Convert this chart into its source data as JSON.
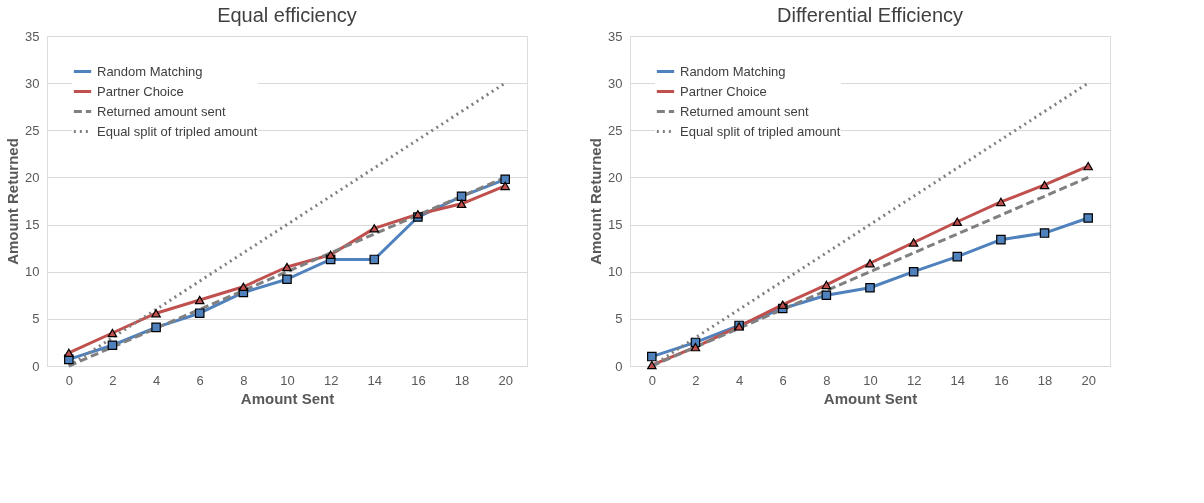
{
  "chart_data": [
    {
      "type": "line",
      "title": "Equal efficiency",
      "xlabel": "Amount Sent",
      "ylabel": "Amount Returned",
      "categories": [
        "0",
        "2",
        "4",
        "6",
        "8",
        "10",
        "12",
        "14",
        "16",
        "18",
        "20"
      ],
      "ylim": [
        0,
        35
      ],
      "yticks": [
        0,
        5,
        10,
        15,
        20,
        25,
        30,
        35
      ],
      "grid": "y",
      "legend": "top left",
      "series": [
        {
          "name": "Random Matching",
          "color": "#4f81bd",
          "marker": "square",
          "line_style": "solid",
          "values": [
            0.7,
            2.2,
            4.1,
            5.6,
            7.8,
            9.2,
            11.3,
            11.3,
            15.8,
            18.0,
            19.8
          ]
        },
        {
          "name": "Partner Choice",
          "color": "#c0504d",
          "marker": "triangle",
          "line_style": "solid",
          "values": [
            1.4,
            3.5,
            5.6,
            7.0,
            8.4,
            10.5,
            11.8,
            14.6,
            16.1,
            17.2,
            19.1
          ]
        },
        {
          "name": "Returned amount sent",
          "color": "#808080",
          "marker": "none",
          "line_style": "dashed",
          "values": [
            0,
            2,
            4,
            6,
            8,
            10,
            12,
            14,
            16,
            18,
            20
          ]
        },
        {
          "name": "Equal split of tripled amount",
          "color": "#808080",
          "marker": "none",
          "line_style": "dotted",
          "values": [
            0,
            3,
            6,
            9,
            12,
            15,
            18,
            21,
            24,
            27,
            30
          ]
        }
      ]
    },
    {
      "type": "line",
      "title": "Differential Efficiency",
      "xlabel": "Amount Sent",
      "ylabel": "Amount Returned",
      "categories": [
        "0",
        "2",
        "4",
        "6",
        "8",
        "10",
        "12",
        "14",
        "16",
        "18",
        "20"
      ],
      "ylim": [
        0,
        35
      ],
      "yticks": [
        0,
        5,
        10,
        15,
        20,
        25,
        30,
        35
      ],
      "grid": "y",
      "legend": "top left",
      "series": [
        {
          "name": "Random Matching",
          "color": "#4f81bd",
          "marker": "square",
          "line_style": "solid",
          "values": [
            1.0,
            2.5,
            4.3,
            6.1,
            7.5,
            8.3,
            10.0,
            11.6,
            13.4,
            14.1,
            15.7
          ]
        },
        {
          "name": "Partner Choice",
          "color": "#c0504d",
          "marker": "triangle",
          "line_style": "solid",
          "values": [
            0.1,
            2.0,
            4.2,
            6.5,
            8.6,
            10.9,
            13.1,
            15.3,
            17.4,
            19.2,
            21.2
          ]
        },
        {
          "name": "Returned amount sent",
          "color": "#808080",
          "marker": "none",
          "line_style": "dashed",
          "values": [
            0,
            2,
            4,
            6,
            8,
            10,
            12,
            14,
            16,
            18,
            20
          ]
        },
        {
          "name": "Equal split of tripled amount",
          "color": "#808080",
          "marker": "none",
          "line_style": "dotted",
          "values": [
            0,
            3,
            6,
            9,
            12,
            15,
            18,
            21,
            24,
            27,
            30
          ]
        }
      ]
    }
  ]
}
